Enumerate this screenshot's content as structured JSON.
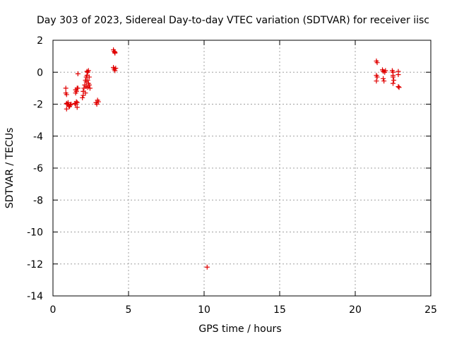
{
  "chart_data": {
    "type": "scatter",
    "title": "Day 303 of 2023, Sidereal Day-to-day VTEC variation (SDTVAR) for receiver iisc",
    "xlabel": "GPS time / hours",
    "ylabel": "SDTVAR / TECUs",
    "xlim": [
      0,
      25
    ],
    "ylim": [
      -14,
      2
    ],
    "xticks": [
      0,
      5,
      10,
      15,
      20,
      25
    ],
    "yticks": [
      2,
      0,
      -2,
      -4,
      -6,
      -8,
      -10,
      -12,
      -14
    ],
    "xtick_labels": [
      "0",
      "5",
      "10",
      "15",
      "20",
      "25"
    ],
    "ytick_labels": [
      "2",
      "0",
      "-2",
      "-4",
      "-6",
      "-8",
      "-10",
      "-12",
      "-14"
    ],
    "grid": true,
    "marker": "+",
    "color": "#e00000",
    "series": [
      {
        "name": "SDTVAR",
        "points": [
          [
            0.85,
            -1.0
          ],
          [
            0.85,
            -1.3
          ],
          [
            0.9,
            -1.4
          ],
          [
            0.9,
            -1.95
          ],
          [
            0.9,
            -2.3
          ],
          [
            0.95,
            -2.0
          ],
          [
            1.0,
            -1.9
          ],
          [
            1.05,
            -2.1
          ],
          [
            1.1,
            -2.15
          ],
          [
            1.15,
            -2.05
          ],
          [
            1.2,
            -2.0
          ],
          [
            1.45,
            -1.95
          ],
          [
            1.5,
            -2.0
          ],
          [
            1.5,
            -1.3
          ],
          [
            1.5,
            -1.1
          ],
          [
            1.55,
            -1.2
          ],
          [
            1.55,
            -1.85
          ],
          [
            1.6,
            -1.0
          ],
          [
            1.6,
            -1.9
          ],
          [
            1.6,
            -2.2
          ],
          [
            1.65,
            -0.1
          ],
          [
            1.65,
            -1.0
          ],
          [
            1.95,
            -1.6
          ],
          [
            2.0,
            -1.2
          ],
          [
            2.0,
            -1.45
          ],
          [
            2.05,
            -1.0
          ],
          [
            2.1,
            -0.8
          ],
          [
            2.15,
            -0.5
          ],
          [
            2.15,
            -1.3
          ],
          [
            2.2,
            -0.3
          ],
          [
            2.2,
            -0.6
          ],
          [
            2.2,
            -0.9
          ],
          [
            2.25,
            0.05
          ],
          [
            2.25,
            -0.2
          ],
          [
            2.3,
            0.0
          ],
          [
            2.3,
            -0.5
          ],
          [
            2.3,
            -0.95
          ],
          [
            2.35,
            0.1
          ],
          [
            2.35,
            -0.7
          ],
          [
            2.4,
            -0.3
          ],
          [
            2.4,
            -0.8
          ],
          [
            2.45,
            -1.0
          ],
          [
            2.85,
            -1.9
          ],
          [
            2.9,
            -2.0
          ],
          [
            2.95,
            -1.75
          ],
          [
            3.0,
            -1.85
          ],
          [
            4.0,
            1.4
          ],
          [
            4.05,
            1.3
          ],
          [
            4.1,
            1.25
          ],
          [
            4.1,
            1.2
          ],
          [
            4.0,
            0.3
          ],
          [
            4.05,
            0.2
          ],
          [
            4.1,
            0.1
          ],
          [
            4.15,
            0.25
          ],
          [
            10.2,
            -12.2
          ],
          [
            21.4,
            0.7
          ],
          [
            21.45,
            0.6
          ],
          [
            21.4,
            -0.2
          ],
          [
            21.45,
            -0.3
          ],
          [
            21.4,
            -0.55
          ],
          [
            21.8,
            0.15
          ],
          [
            21.85,
            0.05
          ],
          [
            21.85,
            -0.4
          ],
          [
            21.9,
            -0.55
          ],
          [
            21.95,
            0.0
          ],
          [
            22.0,
            0.1
          ],
          [
            22.45,
            0.1
          ],
          [
            22.5,
            0.0
          ],
          [
            22.5,
            -0.2
          ],
          [
            22.5,
            -0.3
          ],
          [
            22.55,
            -0.5
          ],
          [
            22.5,
            -0.7
          ],
          [
            22.85,
            0.05
          ],
          [
            22.85,
            -0.15
          ],
          [
            22.85,
            -0.9
          ],
          [
            22.9,
            -0.95
          ]
        ]
      }
    ]
  }
}
